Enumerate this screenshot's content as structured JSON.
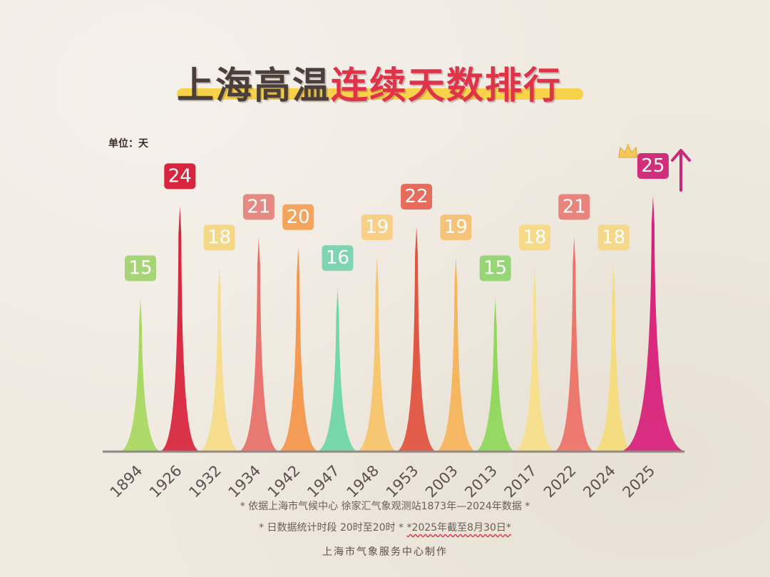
{
  "title": {
    "part1": "上海高温",
    "part2": "连续天数排行"
  },
  "unit_label": "单位：天",
  "chart_data": {
    "type": "bar",
    "categories": [
      "1894",
      "1926",
      "1932",
      "1934",
      "1942",
      "1947",
      "1948",
      "1953",
      "2003",
      "2013",
      "2017",
      "2022",
      "2024",
      "2025"
    ],
    "values": [
      15,
      24,
      18,
      21,
      20,
      16,
      19,
      22,
      19,
      15,
      18,
      21,
      18,
      25
    ],
    "colors": [
      "#a8d860",
      "#d8243c",
      "#f7dc88",
      "#e8706a",
      "#f5964a",
      "#6ed7a6",
      "#f7c46a",
      "#e0523e",
      "#f7b45a",
      "#8ed85a",
      "#f7e08a",
      "#ec7268",
      "#f5dc7a",
      "#d8207a"
    ],
    "label_colors": [
      "#a8d478",
      "#d8243c",
      "#f5d788",
      "#e58a82",
      "#f5a45e",
      "#7fd4b2",
      "#f7cf86",
      "#e86c5c",
      "#f7c27a",
      "#96d676",
      "#f7d98a",
      "#e8847c",
      "#f5d78a",
      "#d02d7a"
    ],
    "title": "上海高温连续天数排行",
    "ylabel": "单位：天",
    "ylim": [
      0,
      25
    ],
    "grid": false,
    "legend": "none"
  },
  "footnotes": {
    "line1": "* 依据上海市气候中心 徐家汇气象观测站1873年—2024年数据 *",
    "line2_a": "* 日数据统计时段 20时至20时 *",
    "line2_b": "*2025年截至8月30日*"
  },
  "credit": "上海市气象服务中心制作",
  "icons": {
    "crown": "crown-icon",
    "arrow": "up-arrow-icon"
  }
}
